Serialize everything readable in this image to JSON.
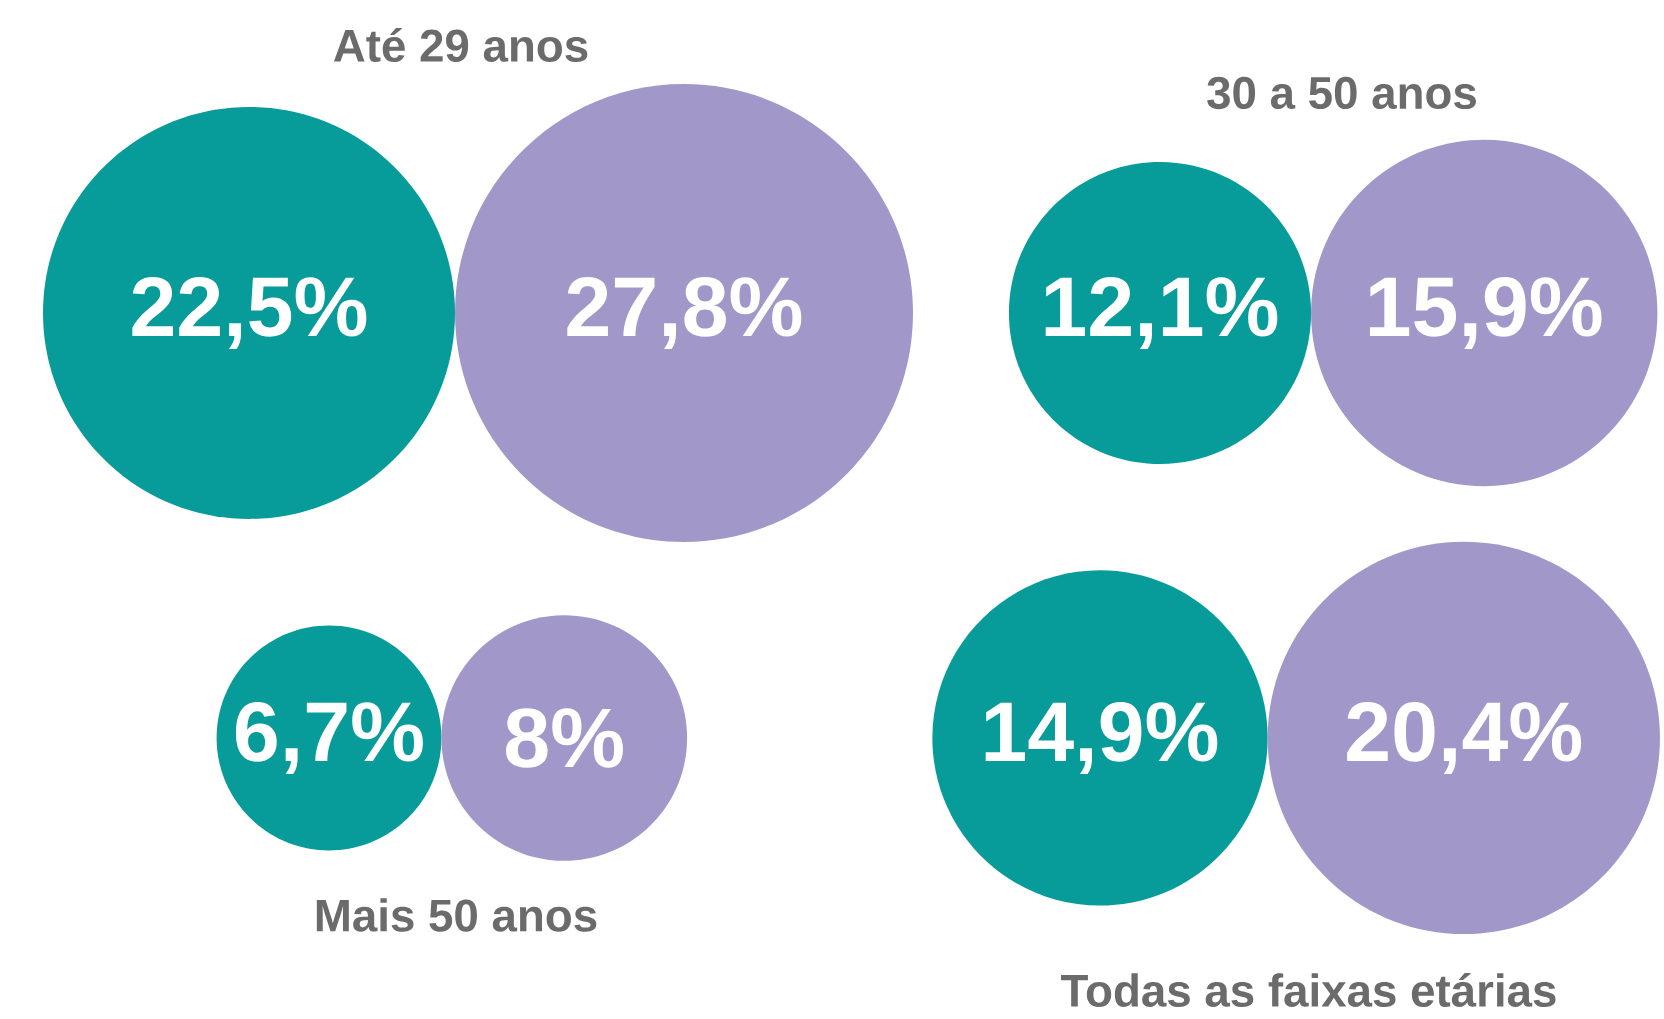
{
  "chart_data": {
    "type": "other",
    "categories": [
      "Até 29 anos",
      "30 a 50 anos",
      "Mais 50 anos",
      "Todas as faixas etárias"
    ],
    "series": [
      {
        "color": "#079b99",
        "values": [
          22.5,
          12.1,
          6.7,
          14.9
        ],
        "value_labels": [
          "22,5%",
          "12,1%",
          "6,7%",
          "14,9%"
        ]
      },
      {
        "color": "#a297c9",
        "values": [
          27.8,
          15.9,
          8,
          20.4
        ],
        "value_labels": [
          "27,8%",
          "15,9%",
          "8%",
          "20,4%"
        ]
      }
    ]
  }
}
